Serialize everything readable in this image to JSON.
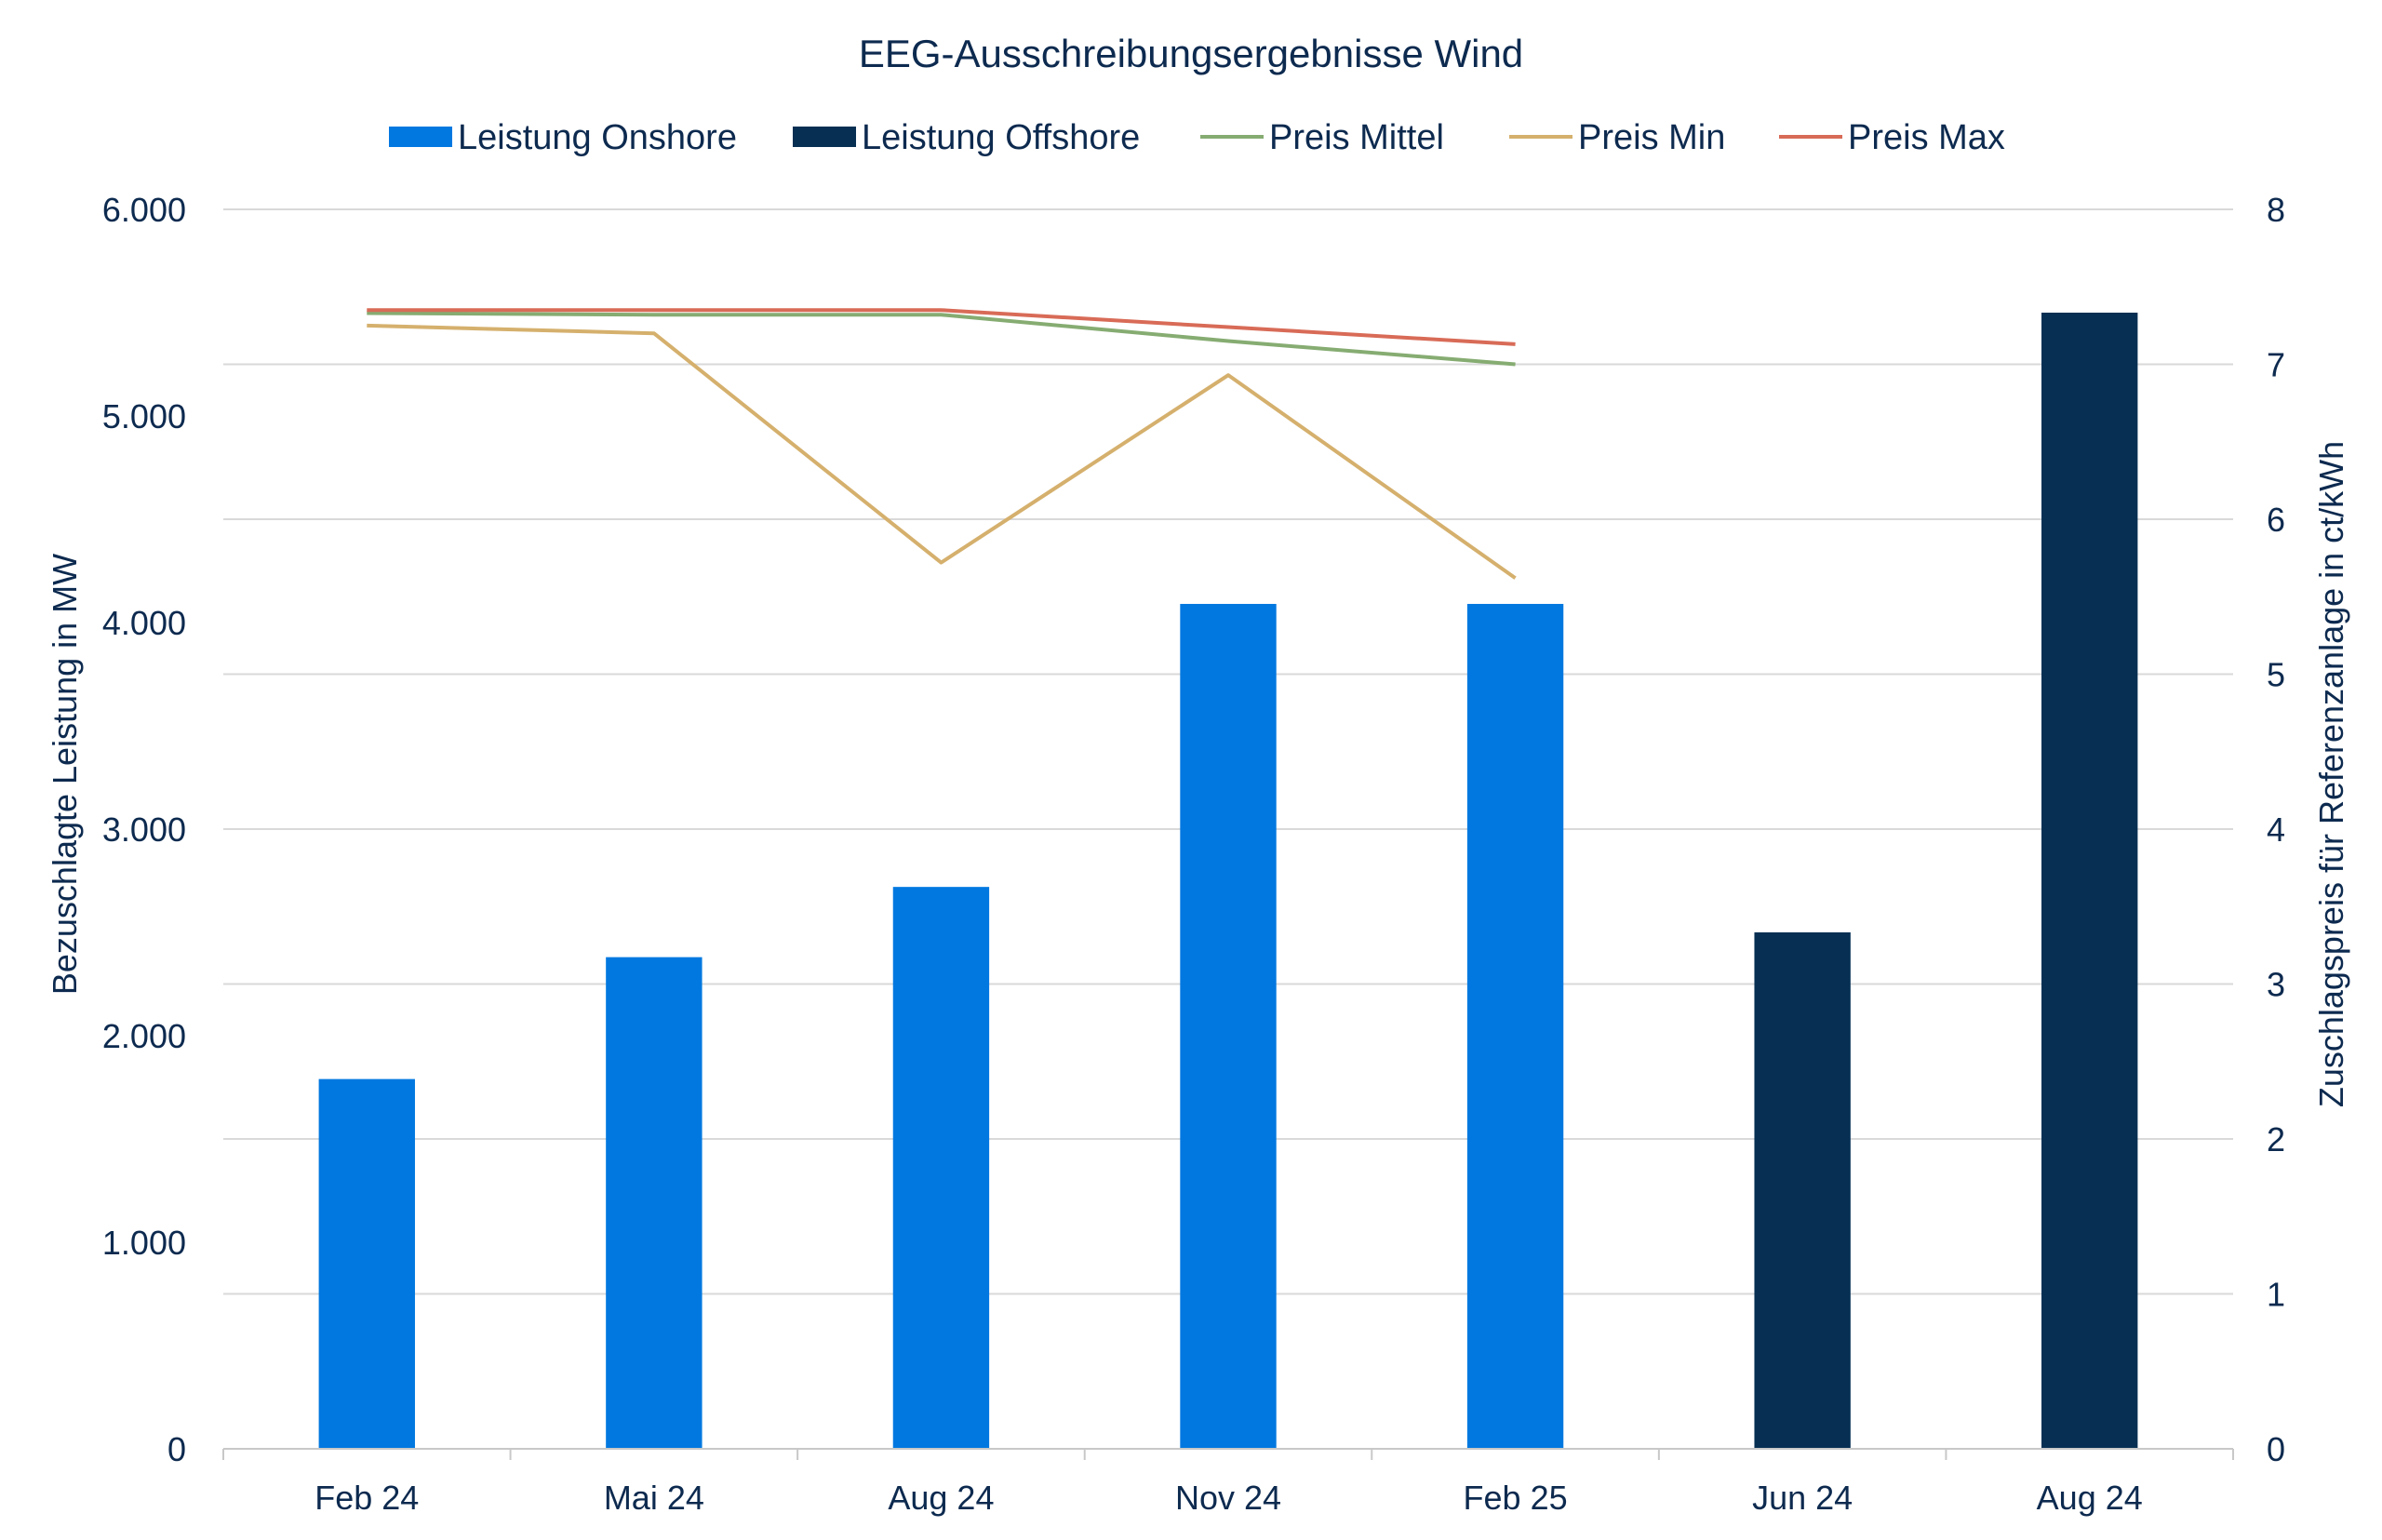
{
  "chart_data": {
    "type": "bar",
    "title": "EEG-Ausschreibungsergebnisse Wind",
    "categories": [
      "Feb 24",
      "Mai 24",
      "Aug 24",
      "Nov 24",
      "Feb 25",
      "Jun 24",
      "Aug 24"
    ],
    "ylabel": "Bezuschlagte Leistung in MW",
    "y2label": "Zuschlagspreis für Referenzanlage in ct/kWh",
    "ylim": [
      0,
      6000
    ],
    "y2lim": [
      0,
      8
    ],
    "yticks": [
      "0",
      "1.000",
      "2.000",
      "3.000",
      "4.000",
      "5.000",
      "6.000"
    ],
    "y2ticks": [
      "0",
      "1",
      "2",
      "3",
      "4",
      "5",
      "6",
      "7",
      "8"
    ],
    "grid": true,
    "legend_position": "top",
    "series": [
      {
        "name": "Leistung Onshore",
        "type": "bar",
        "axis": "left",
        "color": "#0078e0",
        "values": [
          1790,
          2380,
          2720,
          4090,
          4090,
          null,
          null
        ]
      },
      {
        "name": "Leistung Offshore",
        "type": "bar",
        "axis": "left",
        "color": "#062f53",
        "values": [
          null,
          null,
          null,
          null,
          null,
          2500,
          5500
        ]
      },
      {
        "name": "Preis Mittel",
        "type": "line",
        "axis": "right",
        "color": "#86ac72",
        "values": [
          7.33,
          7.32,
          7.32,
          7.15,
          7.0,
          null,
          null
        ]
      },
      {
        "name": "Preis Min",
        "type": "line",
        "axis": "right",
        "color": "#d5b06d",
        "values": [
          7.25,
          7.2,
          5.72,
          6.93,
          5.62,
          null,
          null
        ]
      },
      {
        "name": "Preis Max",
        "type": "line",
        "axis": "right",
        "color": "#d86b57",
        "values": [
          7.35,
          7.35,
          7.35,
          7.24,
          7.13,
          null,
          null
        ]
      }
    ]
  }
}
